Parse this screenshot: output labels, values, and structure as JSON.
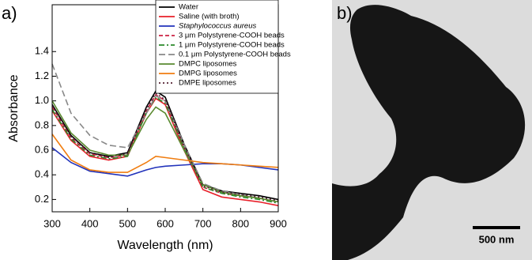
{
  "chart_data": {
    "type": "line",
    "x": [
      300,
      350,
      400,
      450,
      500,
      550,
      575,
      600,
      650,
      700,
      750,
      800,
      850,
      900
    ],
    "series": [
      {
        "name": "Water",
        "color": "#000000",
        "dash": "solid",
        "values": [
          0.97,
          0.72,
          0.58,
          0.55,
          0.58,
          0.95,
          1.08,
          1.03,
          0.65,
          0.32,
          0.27,
          0.25,
          0.23,
          0.2
        ]
      },
      {
        "name": "Saline (with broth)",
        "color": "#e8202a",
        "dash": "solid",
        "values": [
          0.92,
          0.68,
          0.55,
          0.52,
          0.55,
          0.9,
          1.02,
          0.97,
          0.6,
          0.28,
          0.22,
          0.2,
          0.18,
          0.15
        ]
      },
      {
        "name": "Staphylococcus aureus",
        "color": "#2233bb",
        "dash": "solid",
        "values": [
          0.62,
          0.5,
          0.43,
          0.41,
          0.39,
          0.44,
          0.46,
          0.47,
          0.48,
          0.49,
          0.49,
          0.48,
          0.46,
          0.44
        ]
      },
      {
        "name": "3 μm Polystyrene-COOH beads",
        "color": "#cc2244",
        "dash": "dash",
        "values": [
          0.95,
          0.7,
          0.57,
          0.54,
          0.56,
          0.92,
          1.05,
          1.0,
          0.62,
          0.3,
          0.25,
          0.23,
          0.21,
          0.18
        ]
      },
      {
        "name": "1 μm Polystyrene-COOH beads",
        "color": "#2a8a2a",
        "dash": "dashdot",
        "values": [
          0.93,
          0.69,
          0.56,
          0.53,
          0.55,
          0.9,
          1.03,
          0.98,
          0.62,
          0.3,
          0.25,
          0.22,
          0.2,
          0.17
        ]
      },
      {
        "name": "0.1 μm Polystyrene-COOH beads",
        "color": "#888888",
        "dash": "longdash",
        "values": [
          1.3,
          0.9,
          0.72,
          0.64,
          0.62,
          0.9,
          1.04,
          1.0,
          0.65,
          0.33,
          0.27,
          0.24,
          0.21,
          0.18
        ]
      },
      {
        "name": "DMPC liposomes",
        "color": "#5a8a30",
        "dash": "solid",
        "values": [
          1.0,
          0.74,
          0.6,
          0.56,
          0.56,
          0.85,
          0.95,
          0.9,
          0.6,
          0.32,
          0.26,
          0.23,
          0.21,
          0.18
        ]
      },
      {
        "name": "DMPG liposomes",
        "color": "#f07d10",
        "dash": "solid",
        "values": [
          0.73,
          0.52,
          0.44,
          0.42,
          0.42,
          0.5,
          0.55,
          0.54,
          0.52,
          0.5,
          0.49,
          0.48,
          0.47,
          0.46
        ]
      },
      {
        "name": "DMPE liposomes",
        "color": "#552233",
        "dash": "dot",
        "values": [
          0.96,
          0.71,
          0.58,
          0.54,
          0.57,
          0.93,
          1.06,
          1.01,
          0.63,
          0.31,
          0.26,
          0.24,
          0.22,
          0.19
        ]
      }
    ],
    "x_label": "Wavelength (nm)",
    "y_label": "Absorbance",
    "xlim": [
      300,
      900
    ],
    "xticks": [
      300,
      400,
      500,
      600,
      700,
      800,
      900
    ],
    "ylim": [
      0.1,
      1.78
    ],
    "yticks": [
      0.2,
      0.4,
      0.6,
      0.8,
      1.0,
      1.2,
      1.4
    ],
    "legend": "upper right"
  },
  "panel_labels": [
    "a)",
    "b)"
  ],
  "scale_bar": "500 nm"
}
